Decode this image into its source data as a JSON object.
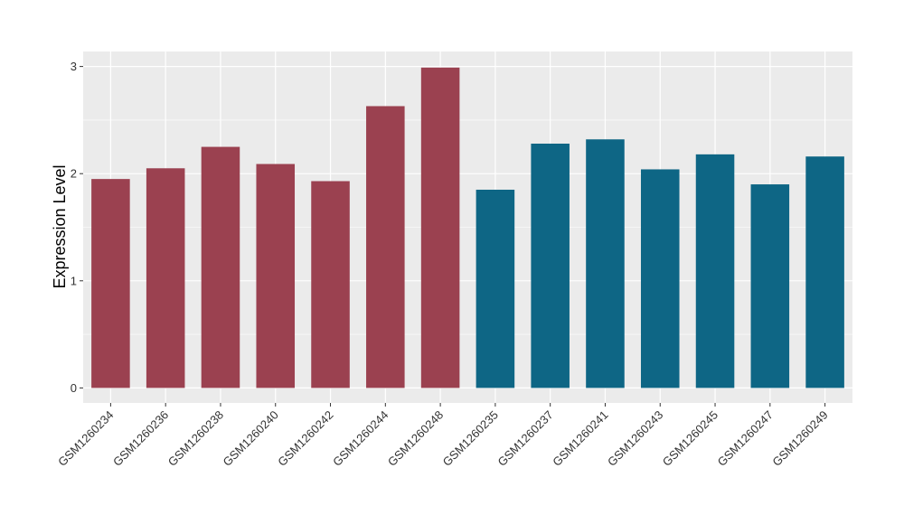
{
  "chart_data": {
    "type": "bar",
    "title": "",
    "xlabel": "",
    "ylabel": "Expression Level",
    "ylim": [
      -0.14,
      3.14
    ],
    "yticks": [
      0,
      1,
      2,
      3
    ],
    "grid": true,
    "legend": "none",
    "categories": [
      "GSM1260234",
      "GSM1260236",
      "GSM1260238",
      "GSM1260240",
      "GSM1260242",
      "GSM1260244",
      "GSM1260248",
      "GSM1260235",
      "GSM1260237",
      "GSM1260241",
      "GSM1260243",
      "GSM1260245",
      "GSM1260247",
      "GSM1260249"
    ],
    "values": [
      1.95,
      2.05,
      2.25,
      2.09,
      1.93,
      2.63,
      2.99,
      1.85,
      2.28,
      2.32,
      2.04,
      2.18,
      1.9,
      2.16
    ],
    "groups": [
      "a",
      "a",
      "a",
      "a",
      "a",
      "a",
      "a",
      "b",
      "b",
      "b",
      "b",
      "b",
      "b",
      "b"
    ],
    "colors": {
      "a": "#9b4150",
      "b": "#0e6685"
    },
    "panel_color": "#ebebeb",
    "grid_color": "#ffffff"
  }
}
